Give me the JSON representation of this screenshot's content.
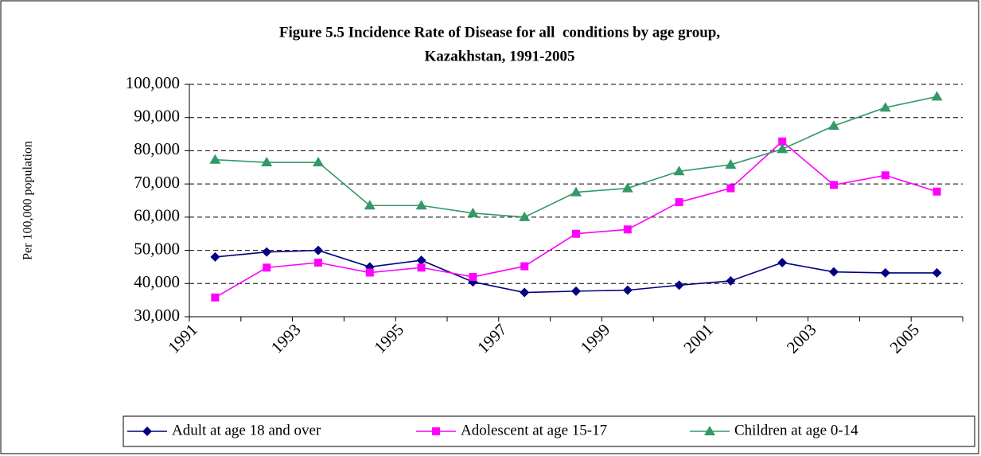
{
  "chart_data": {
    "type": "line",
    "title": [
      "Figure 5.5 Incidence Rate of Disease for all  conditions by age group,",
      "Kazakhstan, 1991-2005"
    ],
    "y_label": "Per 100,000 population",
    "categories": [
      "1991",
      null,
      "1993",
      null,
      "1995",
      null,
      "1997",
      null,
      "1999",
      null,
      "2001",
      null,
      "2003",
      null,
      "2005"
    ],
    "series": [
      {
        "name": "Adult at age 18 and over",
        "color": "#000080",
        "marker": "diamond",
        "values": [
          48000,
          49500,
          50000,
          45000,
          47000,
          40500,
          37300,
          37700,
          38000,
          39500,
          40800,
          46300,
          43500,
          43200,
          43200
        ]
      },
      {
        "name": "Adolescent at age 15-17",
        "color": "#ff00ff",
        "marker": "square",
        "values": [
          35800,
          44800,
          46300,
          43300,
          44800,
          42000,
          45200,
          55000,
          56300,
          64500,
          68700,
          82800,
          69700,
          72600,
          67700
        ]
      },
      {
        "name": "Children at age 0-14",
        "color": "#339966",
        "marker": "triangle",
        "values": [
          77300,
          76500,
          76500,
          63500,
          63500,
          61200,
          60000,
          67500,
          68700,
          73800,
          75800,
          80500,
          87500,
          93000,
          96300
        ]
      }
    ],
    "ylim": [
      30000,
      100000
    ],
    "yticks": [
      {
        "value": 30000,
        "label": "30,000"
      },
      {
        "value": 40000,
        "label": "40,000"
      },
      {
        "value": 50000,
        "label": "50,000"
      },
      {
        "value": 60000,
        "label": "60,000"
      },
      {
        "value": 70000,
        "label": "70,000"
      },
      {
        "value": 80000,
        "label": "80,000"
      },
      {
        "value": 90000,
        "label": "90,000"
      },
      {
        "value": 100000,
        "label": "100,000"
      }
    ],
    "grid": true,
    "legend": "bottom"
  }
}
